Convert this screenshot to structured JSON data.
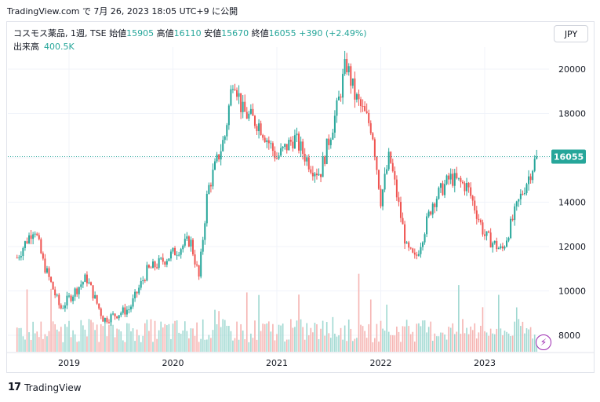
{
  "header": {
    "published_line": "TradingView.com で 7月 26, 2023 18:05 UTC+9 に公開"
  },
  "legend": {
    "symbol_label": "コスモス薬品, 1週, TSE",
    "open_label": "始値",
    "open_value": "15905",
    "high_label": "高値",
    "high_value": "16110",
    "low_label": "安値",
    "low_value": "15670",
    "close_label": "終値",
    "close_value": "16055",
    "change_value": "+390 (+2.49%)",
    "volume_label": "出来高",
    "volume_value": "400.5K"
  },
  "currency_button": "JPY",
  "footer": {
    "logo": "17",
    "brand": "TradingView"
  },
  "colors": {
    "up": "#26a69a",
    "down": "#ef5350",
    "up_volume": "#9fd8d1",
    "down_volume": "#f5b3b1",
    "last_price_label_bg": "#26a69a"
  },
  "chart_data": {
    "type": "candlestick",
    "y_ticks": [
      "8000",
      "10000",
      "12000",
      "14000",
      "16000",
      "18000",
      "20000"
    ],
    "x_ticks": [
      "2019",
      "2020",
      "2021",
      "2022",
      "2023"
    ],
    "ylim": [
      7500,
      21300
    ],
    "last_price": 16055,
    "last_price_label": "16055",
    "price_path": [
      {
        "date": "2018-07",
        "close": 11500
      },
      {
        "date": "2018-09",
        "close": 12900
      },
      {
        "date": "2018-10",
        "close": 11300
      },
      {
        "date": "2018-12",
        "close": 9200
      },
      {
        "date": "2019-03",
        "close": 10600
      },
      {
        "date": "2019-05",
        "close": 8700
      },
      {
        "date": "2019-08",
        "close": 9200
      },
      {
        "date": "2019-10",
        "close": 10900
      },
      {
        "date": "2019-12",
        "close": 11400
      },
      {
        "date": "2020-03",
        "close": 12300
      },
      {
        "date": "2020-04",
        "close": 10600
      },
      {
        "date": "2020-05",
        "close": 14500
      },
      {
        "date": "2020-07",
        "close": 17000
      },
      {
        "date": "2020-08",
        "close": 19800
      },
      {
        "date": "2020-09",
        "close": 18100
      },
      {
        "date": "2020-11",
        "close": 17500
      },
      {
        "date": "2021-01",
        "close": 16000
      },
      {
        "date": "2021-03",
        "close": 16900
      },
      {
        "date": "2021-05",
        "close": 15600
      },
      {
        "date": "2021-06",
        "close": 15300
      },
      {
        "date": "2021-08",
        "close": 18300
      },
      {
        "date": "2021-09",
        "close": 20300
      },
      {
        "date": "2021-10",
        "close": 18800
      },
      {
        "date": "2021-12",
        "close": 17300
      },
      {
        "date": "2022-01",
        "close": 14100
      },
      {
        "date": "2022-02",
        "close": 16100
      },
      {
        "date": "2022-04",
        "close": 11900
      },
      {
        "date": "2022-05",
        "close": 11400
      },
      {
        "date": "2022-07",
        "close": 14000
      },
      {
        "date": "2022-09",
        "close": 15100
      },
      {
        "date": "2022-11",
        "close": 14700
      },
      {
        "date": "2023-01",
        "close": 12500
      },
      {
        "date": "2023-03",
        "close": 11800
      },
      {
        "date": "2023-05",
        "close": 14100
      },
      {
        "date": "2023-07",
        "close": 16055
      }
    ]
  }
}
